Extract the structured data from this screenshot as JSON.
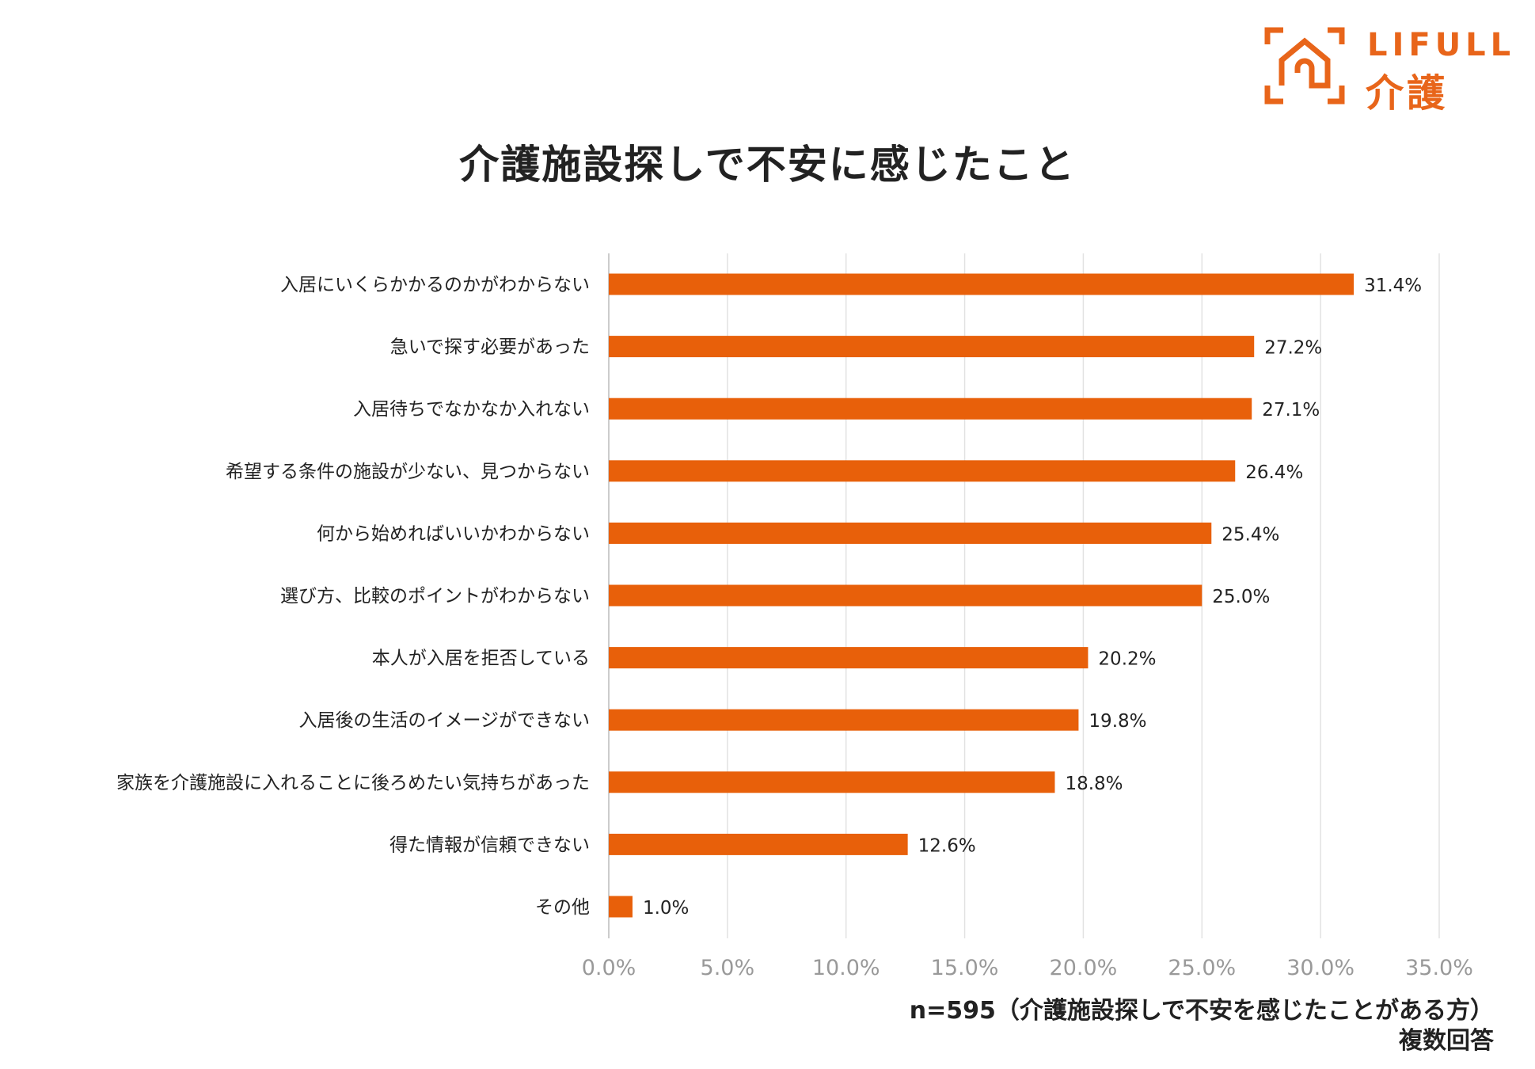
{
  "logo": {
    "line1": "LIFULL",
    "line2": "介護",
    "color": "#e8651a"
  },
  "chart_data": {
    "type": "bar",
    "orientation": "horizontal",
    "title": "介護施設探しで不安に感じたこと",
    "categories": [
      "入居にいくらかかるのかがわからない",
      "急いで探す必要があった",
      "入居待ちでなかなか入れない",
      "希望する条件の施設が少ない、見つからない",
      "何から始めればいいかわからない",
      "選び方、比較のポイントがわからない",
      "本人が入居を拒否している",
      "入居後の生活のイメージができない",
      "家族を介護施設に入れることに後ろめたい気持ちがあった",
      "得た情報が信頼できない",
      "その他"
    ],
    "values": [
      31.4,
      27.2,
      27.1,
      26.4,
      25.4,
      25.0,
      20.2,
      19.8,
      18.8,
      12.6,
      1.0
    ],
    "value_labels": [
      "31.4%",
      "27.2%",
      "27.1%",
      "26.4%",
      "25.4%",
      "25.0%",
      "20.2%",
      "19.8%",
      "18.8%",
      "12.6%",
      "1.0%"
    ],
    "xlim": [
      0,
      35
    ],
    "xticks": [
      "0.0%",
      "5.0%",
      "10.0%",
      "15.0%",
      "20.0%",
      "25.0%",
      "30.0%",
      "35.0%"
    ],
    "grid": true,
    "bar_color": "#e8600a"
  },
  "note": {
    "sample": "n=595（介護施設探しで不安を感じたことがある方）",
    "answer_type": "複数回答"
  }
}
